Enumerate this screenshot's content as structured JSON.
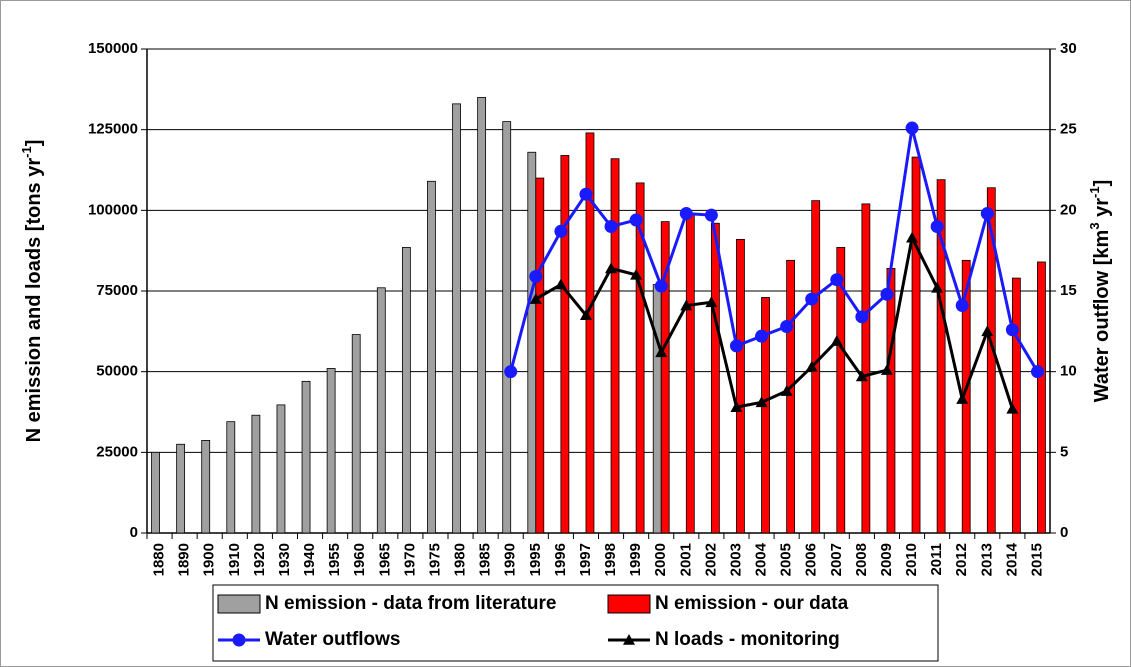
{
  "chart_data": {
    "type": "bar",
    "categories": [
      "1880",
      "1890",
      "1900",
      "1910",
      "1920",
      "1930",
      "1940",
      "1955",
      "1960",
      "1965",
      "1970",
      "1975",
      "1980",
      "1985",
      "1990",
      "1995",
      "1996",
      "1997",
      "1998",
      "1999",
      "2000",
      "2001",
      "2002",
      "2003",
      "2004",
      "2005",
      "2006",
      "2007",
      "2008",
      "2009",
      "2010",
      "2011",
      "2012",
      "2013",
      "2014",
      "2015"
    ],
    "y_label": [
      "N emission and loads [tons yr",
      "-1",
      "]"
    ],
    "y2_label": [
      "Water outflow [km",
      "3",
      " yr",
      "-1",
      "]"
    ],
    "ylim": [
      0,
      150000
    ],
    "yticks": [
      0,
      25000,
      50000,
      75000,
      100000,
      125000,
      150000
    ],
    "y2lim": [
      0,
      30
    ],
    "y2ticks": [
      0,
      5,
      10,
      15,
      20,
      25,
      30
    ],
    "grid": true,
    "series": [
      {
        "name": "N emission - data from literature",
        "type": "bar",
        "color": "#a0a0a0",
        "values": [
          25000,
          27500,
          28700,
          34500,
          36500,
          39700,
          47000,
          51000,
          61500,
          76000,
          88500,
          109000,
          133000,
          135000,
          127500,
          118000,
          null,
          null,
          null,
          null,
          77000,
          null,
          null,
          null,
          null,
          null,
          null,
          null,
          null,
          null,
          null,
          null,
          null,
          null,
          null,
          null
        ]
      },
      {
        "name": "N emission - our data",
        "type": "bar",
        "color": "#ff0000",
        "values": [
          null,
          null,
          null,
          null,
          null,
          null,
          null,
          null,
          null,
          null,
          null,
          null,
          null,
          null,
          null,
          110000,
          117000,
          124000,
          116000,
          108500,
          96500,
          99000,
          96000,
          91000,
          73000,
          84500,
          103000,
          88500,
          102000,
          82000,
          116500,
          109500,
          84500,
          107000,
          79000,
          84000
        ]
      },
      {
        "name": "Water outflows",
        "type": "line",
        "axis": "y2",
        "color": "#1a1aff",
        "marker": "circle",
        "values": [
          null,
          null,
          null,
          null,
          null,
          null,
          null,
          null,
          null,
          null,
          null,
          null,
          null,
          null,
          10,
          15.9,
          18.7,
          21,
          19,
          19.4,
          15.3,
          19.8,
          19.7,
          11.6,
          12.2,
          12.8,
          14.5,
          15.7,
          13.4,
          14.8,
          25.1,
          19,
          14.1,
          19.8,
          12.6,
          10
        ]
      },
      {
        "name": "N loads - monitoring",
        "type": "line",
        "axis": "y2",
        "color": "#000000",
        "marker": "triangle",
        "values": [
          null,
          null,
          null,
          null,
          null,
          null,
          null,
          null,
          null,
          null,
          null,
          null,
          null,
          null,
          null,
          14.5,
          15.4,
          13.5,
          16.4,
          16,
          11.2,
          14.1,
          14.3,
          7.8,
          8.1,
          8.8,
          10.3,
          11.9,
          9.7,
          10.1,
          18.3,
          15.2,
          8.3,
          12.5,
          7.7,
          null
        ]
      }
    ]
  }
}
